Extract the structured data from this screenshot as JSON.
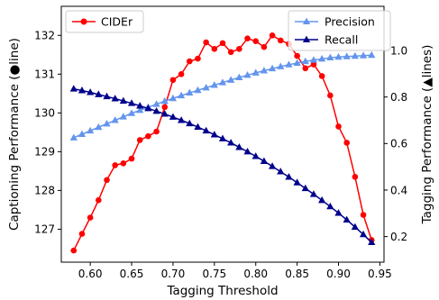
{
  "chart_data": {
    "type": "line",
    "xlabel": "Tagging Threshold",
    "ylabel_left": "Captioning Performance (●line)",
    "ylabel_right": "Tagging Performance (▲lines)",
    "xlim": [
      0.565,
      0.955
    ],
    "ylim_left": [
      126.15,
      132.75
    ],
    "ylim_right": [
      0.09,
      1.19
    ],
    "x_ticks": [
      0.6,
      0.65,
      0.7,
      0.75,
      0.8,
      0.85,
      0.9,
      0.95
    ],
    "x_tick_labels": [
      "0.60",
      "0.65",
      "0.70",
      "0.75",
      "0.80",
      "0.85",
      "0.90",
      "0.95"
    ],
    "y_left_ticks": [
      127,
      128,
      129,
      130,
      131,
      132
    ],
    "y_left_tick_labels": [
      "127",
      "128",
      "129",
      "130",
      "131",
      "132"
    ],
    "y_right_ticks": [
      0.2,
      0.4,
      0.6,
      0.8,
      1.0
    ],
    "y_right_tick_labels": [
      "0.2",
      "0.4",
      "0.6",
      "0.8",
      "1.0"
    ],
    "grid": false,
    "legend_left": {
      "placement": "top-left",
      "entries": [
        "CIDEr"
      ]
    },
    "legend_right": {
      "placement": "top-right",
      "entries": [
        "Precision",
        "Recall"
      ]
    },
    "series": [
      {
        "name": "CIDEr",
        "axis": "left",
        "marker": "circle",
        "color": "#ff0000",
        "x": [
          0.58,
          0.59,
          0.6,
          0.61,
          0.62,
          0.63,
          0.64,
          0.65,
          0.66,
          0.67,
          0.68,
          0.69,
          0.7,
          0.71,
          0.72,
          0.73,
          0.74,
          0.75,
          0.76,
          0.77,
          0.78,
          0.79,
          0.8,
          0.81,
          0.82,
          0.83,
          0.84,
          0.85,
          0.86,
          0.87,
          0.88,
          0.89,
          0.9,
          0.91,
          0.92,
          0.93,
          0.94
        ],
        "y": [
          126.45,
          126.88,
          127.3,
          127.75,
          128.27,
          128.65,
          128.7,
          128.82,
          129.3,
          129.4,
          129.52,
          130.15,
          130.85,
          131.0,
          131.33,
          131.4,
          131.82,
          131.65,
          131.8,
          131.57,
          131.65,
          131.92,
          131.85,
          131.7,
          132.0,
          131.87,
          131.78,
          131.47,
          131.15,
          131.25,
          130.95,
          130.45,
          129.65,
          129.23,
          128.35,
          127.37,
          126.72
        ]
      },
      {
        "name": "Precision",
        "axis": "right",
        "marker": "triangle",
        "color": "#6495ed",
        "x": [
          0.58,
          0.59,
          0.6,
          0.61,
          0.62,
          0.63,
          0.64,
          0.65,
          0.66,
          0.67,
          0.68,
          0.69,
          0.7,
          0.71,
          0.72,
          0.73,
          0.74,
          0.75,
          0.76,
          0.77,
          0.78,
          0.79,
          0.8,
          0.81,
          0.82,
          0.83,
          0.84,
          0.85,
          0.86,
          0.87,
          0.88,
          0.89,
          0.9,
          0.91,
          0.92,
          0.93,
          0.94
        ],
        "y": [
          0.625,
          0.64,
          0.655,
          0.67,
          0.685,
          0.7,
          0.715,
          0.73,
          0.743,
          0.756,
          0.769,
          0.782,
          0.794,
          0.806,
          0.818,
          0.829,
          0.84,
          0.851,
          0.862,
          0.873,
          0.884,
          0.894,
          0.904,
          0.913,
          0.922,
          0.931,
          0.939,
          0.946,
          0.953,
          0.959,
          0.964,
          0.969,
          0.972,
          0.974,
          0.976,
          0.978,
          0.98
        ]
      },
      {
        "name": "Recall",
        "axis": "right",
        "marker": "triangle",
        "color": "#00008b",
        "x": [
          0.58,
          0.59,
          0.6,
          0.61,
          0.62,
          0.63,
          0.64,
          0.65,
          0.66,
          0.67,
          0.68,
          0.69,
          0.7,
          0.71,
          0.72,
          0.73,
          0.74,
          0.75,
          0.76,
          0.77,
          0.78,
          0.79,
          0.8,
          0.81,
          0.82,
          0.83,
          0.84,
          0.85,
          0.86,
          0.87,
          0.88,
          0.89,
          0.9,
          0.91,
          0.92,
          0.93,
          0.94
        ],
        "y": [
          0.835,
          0.828,
          0.82,
          0.811,
          0.802,
          0.793,
          0.783,
          0.773,
          0.762,
          0.751,
          0.739,
          0.727,
          0.714,
          0.7,
          0.686,
          0.671,
          0.655,
          0.638,
          0.621,
          0.603,
          0.584,
          0.565,
          0.545,
          0.524,
          0.502,
          0.479,
          0.456,
          0.432,
          0.407,
          0.382,
          0.356,
          0.329,
          0.301,
          0.272,
          0.241,
          0.209,
          0.175
        ]
      }
    ]
  }
}
